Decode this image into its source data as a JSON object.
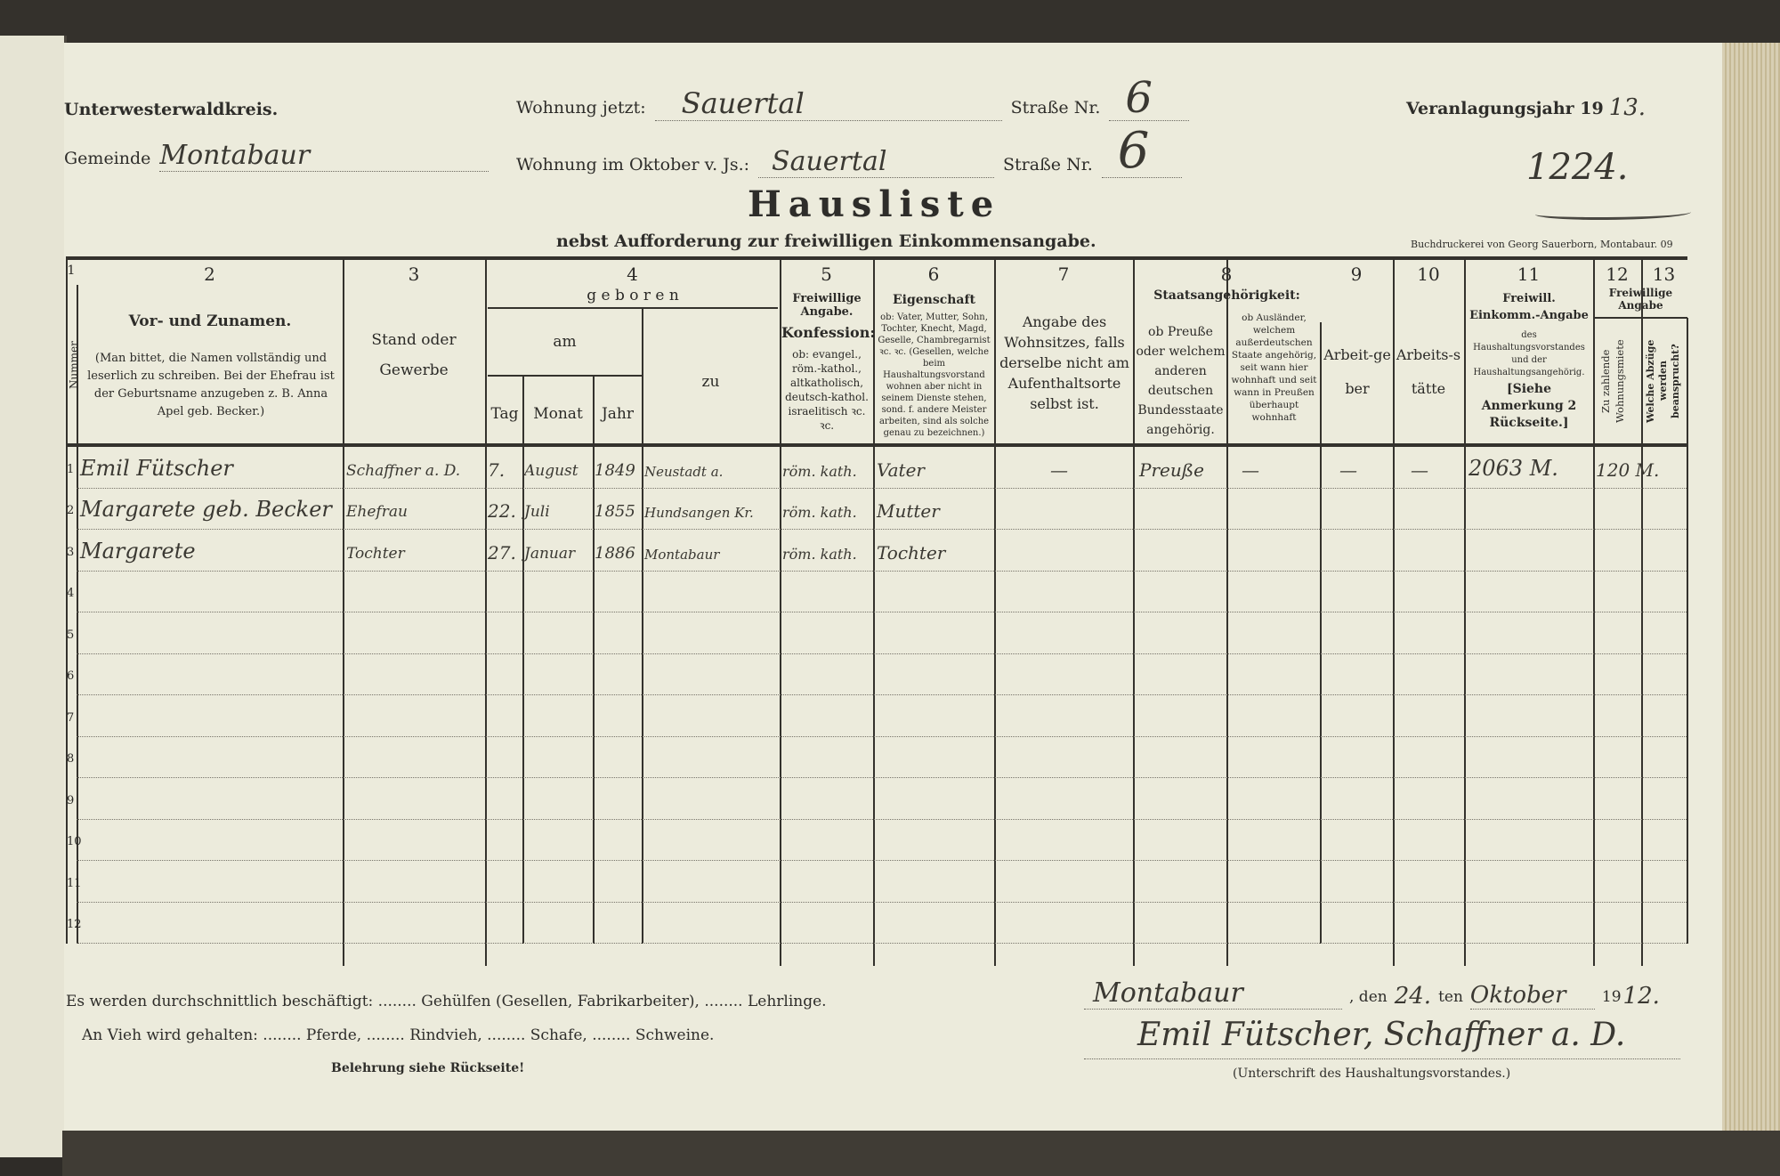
{
  "header": {
    "district": "Unterwesterwaldkreis.",
    "municipality_label": "Gemeinde",
    "municipality_value": "Montabaur",
    "current_residence_label": "Wohnung jetzt:",
    "current_residence_value": "Sauertal",
    "street_label_1": "Straße Nr.",
    "street_no_1": "6",
    "october_residence_label": "Wohnung im Oktober v. Js.:",
    "october_residence_value": "Sauertal",
    "street_label_2": "Straße Nr.",
    "street_no_2": "6",
    "assessment_year_label": "Veranlagungsjahr 19",
    "assessment_year_value": "13.",
    "list_number": "1224.",
    "title": "Hausliste",
    "subtitle": "nebst Aufforderung zur freiwilligen Einkommensangabe.",
    "printer": "Buchdruckerei von Georg Sauerborn, Montabaur. 09"
  },
  "columns": {
    "numbers": [
      "1",
      "2",
      "3",
      "4",
      "5",
      "6",
      "7",
      "8",
      "9",
      "10",
      "11",
      "12",
      "13"
    ],
    "c1": "Nummer",
    "c2_title": "Vor- und Zunamen.",
    "c2_note": "(Man bittet, die Namen vollständig und leserlich zu schreiben. Bei der Ehefrau ist der Geburtsname anzugeben z. B. Anna Apel geb. Becker.)",
    "c3": "Stand oder Gewerbe",
    "c4_group": "g e b o r e n",
    "c4_am": "am",
    "c4_tag": "Tag",
    "c4_monat": "Monat",
    "c4_jahr": "Jahr",
    "c4_zu": "zu",
    "c5_title": "Freiwillige Angabe.",
    "c5_sub": "Konfession:",
    "c5_note": "ob: evangel., röm.-kathol., altkatholisch, deutsch-kathol. israelitisch ꝛc. ꝛc.",
    "c6_title": "Eigenschaft",
    "c6_note": "ob: Vater, Mutter, Sohn, Tochter, Knecht, Magd, Geselle, Chambregarnist ꝛc. ꝛc. (Gesellen, welche beim Haushaltungsvorstand wohnen aber nicht in seinem Dienste stehen, sond. f. andere Meister arbeiten, sind als solche genau zu bezeichnen.)",
    "c7": "Angabe des Wohnsitzes, falls derselbe nicht am Aufenthaltsorte selbst ist.",
    "c8_title": "Staatsangehörigkeit:",
    "c8a": "ob Preuße oder welchem anderen deutschen Bundesstaate angehörig.",
    "c8b": "ob Ausländer, welchem außerdeutschen Staate angehörig, seit wann hier wohnhaft und seit wann in Preußen überhaupt wohnhaft",
    "c9": "Arbeit-geber",
    "c10": "Arbeits-stätte",
    "c11_title": "Freiwill. Einkomm.-Angabe",
    "c11_note": "des Haushaltungsvorstandes und der Haushaltungsangehörig.",
    "c11_ref": "[Siehe Anmerkung 2 Rückseite.]",
    "c1213_title": "Freiwillige Angabe",
    "c12": "Zu zahlende Wohnungsmiete",
    "c13": "Welche Abzüge werden beansprucht?"
  },
  "row_numbers": [
    "1",
    "2",
    "3",
    "4",
    "5",
    "6",
    "7",
    "8",
    "9",
    "10",
    "11",
    "12"
  ],
  "rows": [
    {
      "name": "Emil Fütscher",
      "stand": "Schaffner a. D.",
      "tag": "7.",
      "monat": "August",
      "jahr": "1849",
      "ort": "Neustadt a.",
      "konfession": "röm. kath.",
      "eigenschaft": "Vater",
      "wohnsitz": "—",
      "preusse": "Preuße",
      "auslaender": "—",
      "arbeitgeber": "—",
      "arbeitsstaette": "—",
      "einkommen": "2063 M.",
      "miete": "120 M."
    },
    {
      "name": "Margarete geb. Becker",
      "stand": "Ehefrau",
      "tag": "22.",
      "monat": "Juli",
      "jahr": "1855",
      "ort": "Hundsangen Kr.",
      "konfession": "röm. kath.",
      "eigenschaft": "Mutter"
    },
    {
      "name": "Margarete",
      "stand": "Tochter",
      "tag": "27.",
      "monat": "Januar",
      "jahr": "1886",
      "ort": "Montabaur",
      "konfession": "röm. kath.",
      "eigenschaft": "Tochter"
    }
  ],
  "footer": {
    "employed_text": "Es werden durchschnittlich beschäftigt: ........ Gehülfen (Gesellen, Fabrikarbeiter), ........ Lehrlinge.",
    "livestock_text": "An Vieh wird gehalten: ........ Pferde, ........ Rindvieh, ........ Schafe, ........ Schweine.",
    "instructions": "Belehrung siehe Rückseite!",
    "place": "Montabaur",
    "den_label": ", den",
    "day": "24.",
    "ten_label": "ten",
    "month": "Oktober",
    "year_prefix": "19",
    "year_value": "12.",
    "signature": "Emil Fütscher, Schaffner a. D.",
    "signature_caption": "(Unterschrift des Haushaltungsvorstandes.)"
  }
}
